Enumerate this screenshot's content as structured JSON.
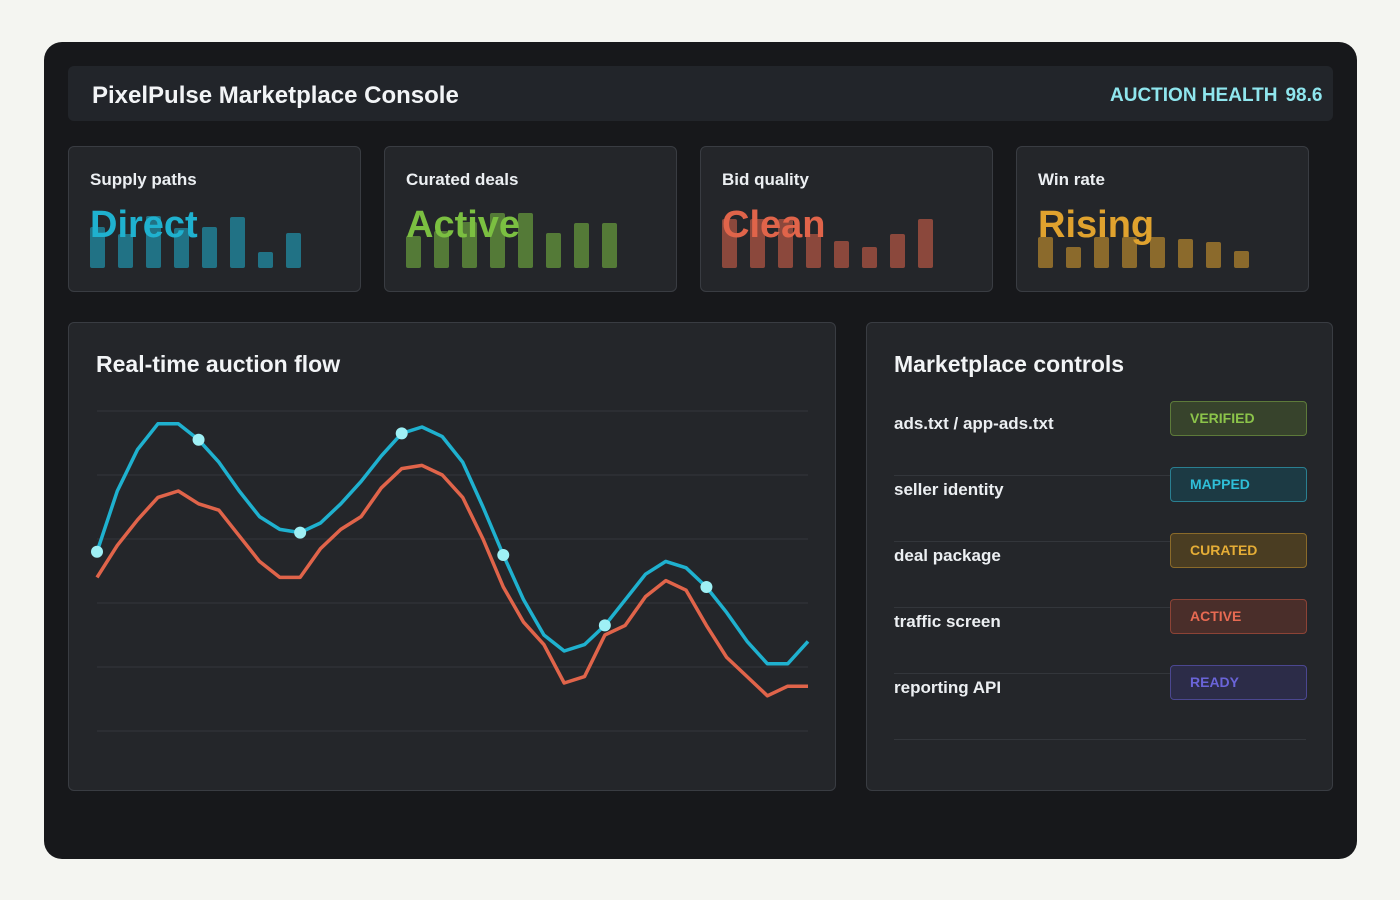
{
  "header": {
    "title": "PixelPulse Marketplace Console",
    "health_label": "AUCTION HEALTH",
    "health_value": "98.6"
  },
  "kpis": [
    {
      "label": "Supply paths",
      "value": "Direct",
      "color": "#1fb1cf",
      "bars": [
        0.68,
        0.55,
        0.85,
        0.65,
        0.68,
        0.84,
        0.27,
        0.58
      ]
    },
    {
      "label": "Curated deals",
      "value": "Active",
      "color": "#7bbf41",
      "bars": [
        0.52,
        0.6,
        0.75,
        0.9,
        0.9,
        0.58,
        0.74,
        0.74
      ]
    },
    {
      "label": "Bid quality",
      "value": "Clean",
      "color": "#e0644a",
      "bars": [
        0.8,
        0.8,
        0.8,
        0.55,
        0.44,
        0.35,
        0.56,
        0.8
      ]
    },
    {
      "label": "Win rate",
      "value": "Rising",
      "color": "#e0a22e",
      "bars": [
        0.5,
        0.35,
        0.5,
        0.5,
        0.5,
        0.48,
        0.42,
        0.28
      ]
    }
  ],
  "flow": {
    "title": "Real-time auction flow",
    "chart_data": {
      "type": "line",
      "series": [
        {
          "color": "#1fb1cf",
          "values": [
            0.56,
            0.75,
            0.88,
            0.96,
            0.96,
            0.91,
            0.84,
            0.75,
            0.67,
            0.63,
            0.62,
            0.65,
            0.71,
            0.78,
            0.86,
            0.93,
            0.95,
            0.92,
            0.84,
            0.7,
            0.55,
            0.41,
            0.3,
            0.25,
            0.27,
            0.33,
            0.41,
            0.49,
            0.53,
            0.51,
            0.45,
            0.37,
            0.28,
            0.21,
            0.21,
            0.28
          ],
          "markers": [
            0,
            5,
            10,
            15,
            20,
            25,
            30
          ]
        },
        {
          "color": "#e0644a",
          "values": [
            0.48,
            0.58,
            0.66,
            0.73,
            0.75,
            0.71,
            0.69,
            0.61,
            0.53,
            0.48,
            0.48,
            0.57,
            0.63,
            0.67,
            0.76,
            0.82,
            0.83,
            0.8,
            0.73,
            0.6,
            0.45,
            0.34,
            0.27,
            0.15,
            0.17,
            0.3,
            0.33,
            0.42,
            0.47,
            0.44,
            0.33,
            0.23,
            0.17,
            0.11,
            0.14,
            0.14
          ],
          "markers": []
        }
      ],
      "ylim": [
        0,
        1
      ],
      "grid": true
    }
  },
  "controls": {
    "title": "Marketplace controls",
    "rows": [
      {
        "label": "ads.txt / app-ads.txt",
        "status": "VERIFIED",
        "color": "#8cc44a",
        "bg": "#37432c",
        "border": "#5d7a3a"
      },
      {
        "label": "seller identity",
        "status": "MAPPED",
        "color": "#2fbfd8",
        "bg": "#1c3a44",
        "border": "#2a7f91"
      },
      {
        "label": "deal package",
        "status": "CURATED",
        "color": "#e5ad36",
        "bg": "#4a3d22",
        "border": "#8a6a2a"
      },
      {
        "label": "traffic screen",
        "status": "ACTIVE",
        "color": "#e86a52",
        "bg": "#4a2e2a",
        "border": "#8c4336"
      },
      {
        "label": "reporting API",
        "status": "READY",
        "color": "#6a64d8",
        "bg": "#2c2c48",
        "border": "#4b4790"
      }
    ]
  }
}
